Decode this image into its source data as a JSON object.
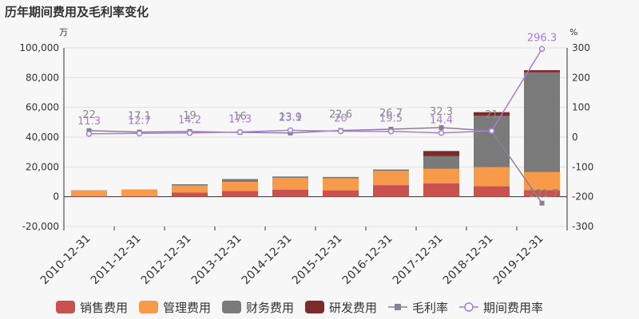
{
  "chart_data": {
    "type": "bar",
    "title": "历年期间费用及毛利率变化",
    "left_unit": "万",
    "right_unit": "%",
    "categories": [
      "2010-12-31",
      "2011-12-31",
      "2012-12-31",
      "2013-12-31",
      "2014-12-31",
      "2015-12-31",
      "2016-12-31",
      "2017-12-31",
      "2018-12-31",
      "2019-12-31"
    ],
    "y_left": {
      "min": -20000,
      "max": 100000,
      "ticks": [
        -20000,
        0,
        20000,
        40000,
        60000,
        80000,
        100000
      ],
      "tick_labels": [
        "-20,000",
        "0",
        "20,000",
        "40,000",
        "60,000",
        "80,000",
        "100,000"
      ]
    },
    "y_right": {
      "min": -300,
      "max": 300,
      "ticks": [
        -300,
        -200,
        -100,
        0,
        100,
        200,
        300
      ],
      "tick_labels": [
        "-300",
        "-200",
        "-100",
        "0",
        "100",
        "200",
        "300"
      ]
    },
    "stacked_series": [
      {
        "name": "销售费用",
        "color": "#c9524e",
        "values": [
          300,
          300,
          2800,
          3800,
          4800,
          4300,
          7800,
          9000,
          7000,
          4500
        ]
      },
      {
        "name": "管理费用",
        "color": "#f79a4a",
        "values": [
          4000,
          4500,
          4700,
          6200,
          7900,
          8000,
          9500,
          9700,
          12800,
          12000
        ]
      },
      {
        "name": "财务费用",
        "color": "#7a7a7a",
        "values": [
          100,
          100,
          900,
          1900,
          900,
          1000,
          1000,
          8500,
          34500,
          67000
        ]
      },
      {
        "name": "研发费用",
        "color": "#7d2a2a",
        "values": [
          0,
          0,
          0,
          0,
          0,
          0,
          0,
          3500,
          2500,
          1500
        ]
      }
    ],
    "line_series": [
      {
        "name": "毛利率",
        "color": "#8b7f93",
        "marker": "square",
        "values": [
          22,
          17.1,
          19,
          16,
          13.9,
          22.6,
          26.7,
          32.3,
          21,
          -221.7
        ],
        "labels": [
          "22",
          "17.1",
          "19",
          "16",
          "13.9",
          "22.6",
          "26.7",
          "32.3",
          "21",
          "-221.7"
        ]
      },
      {
        "name": "期间费用率",
        "color": "#a97bd7",
        "marker": "circle",
        "values": [
          11.3,
          12.7,
          14.2,
          17.3,
          23.1,
          20,
          19.5,
          14.4,
          21,
          296.3
        ],
        "labels": [
          "11.3",
          "12.7",
          "14.2",
          "17.3",
          "23.1",
          "20",
          "19.5",
          "14.4",
          "",
          "296.3"
        ]
      }
    ],
    "legend_position": "bottom"
  }
}
